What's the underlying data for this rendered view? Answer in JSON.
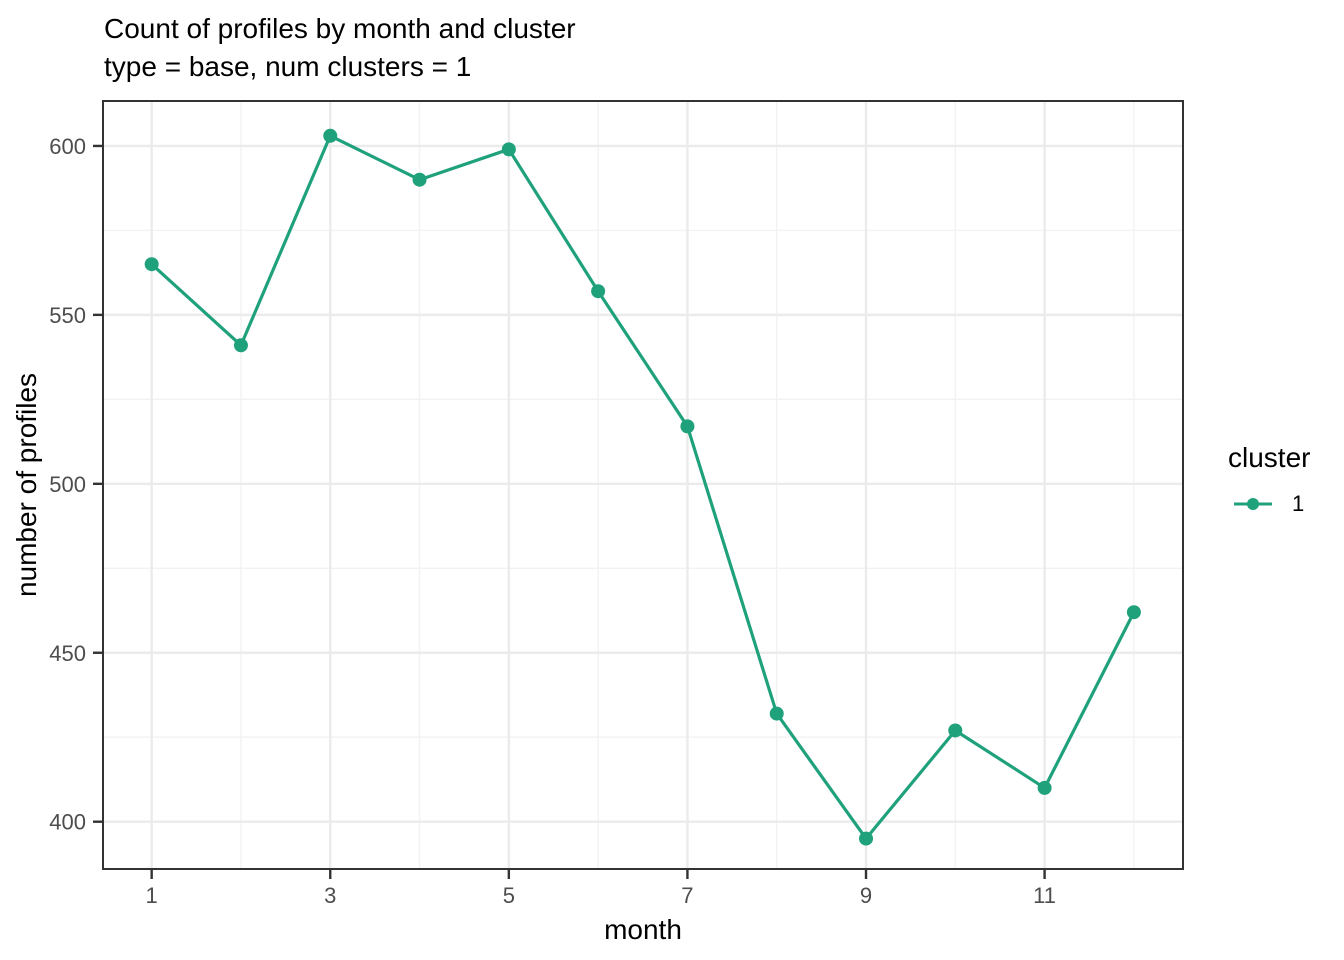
{
  "chart_data": {
    "type": "line",
    "title": "Count of profiles by month and cluster",
    "subtitle": "type = base, num clusters = 1",
    "xlabel": "month",
    "ylabel": "number of profiles",
    "x": [
      1,
      2,
      3,
      4,
      5,
      6,
      7,
      8,
      9,
      10,
      11,
      12
    ],
    "series": [
      {
        "name": "1",
        "color": "#1fa17c",
        "values": [
          565,
          541,
          603,
          590,
          599,
          557,
          517,
          432,
          395,
          427,
          410,
          462
        ]
      }
    ],
    "xlim": [
      0.455,
      12.55
    ],
    "ylim": [
      386,
      613.3
    ],
    "x_ticks": [
      1,
      3,
      5,
      7,
      9,
      11
    ],
    "x_minor": [
      2,
      4,
      6,
      8,
      10,
      12
    ],
    "y_ticks": [
      400,
      450,
      500,
      550,
      600
    ],
    "y_minor": [
      425,
      475,
      525,
      575
    ],
    "grid": true,
    "legend": {
      "title": "cluster",
      "position": "right",
      "items": [
        {
          "label": "1",
          "color": "#1fa17c"
        }
      ]
    },
    "colors": {
      "grid_major": "#ebebeb",
      "grid_minor": "#f2f2f2",
      "panel_border": "#333333",
      "tick_mark": "#333333",
      "tick_label": "#4d4d4d",
      "text": "#000000",
      "background": "#ffffff"
    }
  }
}
